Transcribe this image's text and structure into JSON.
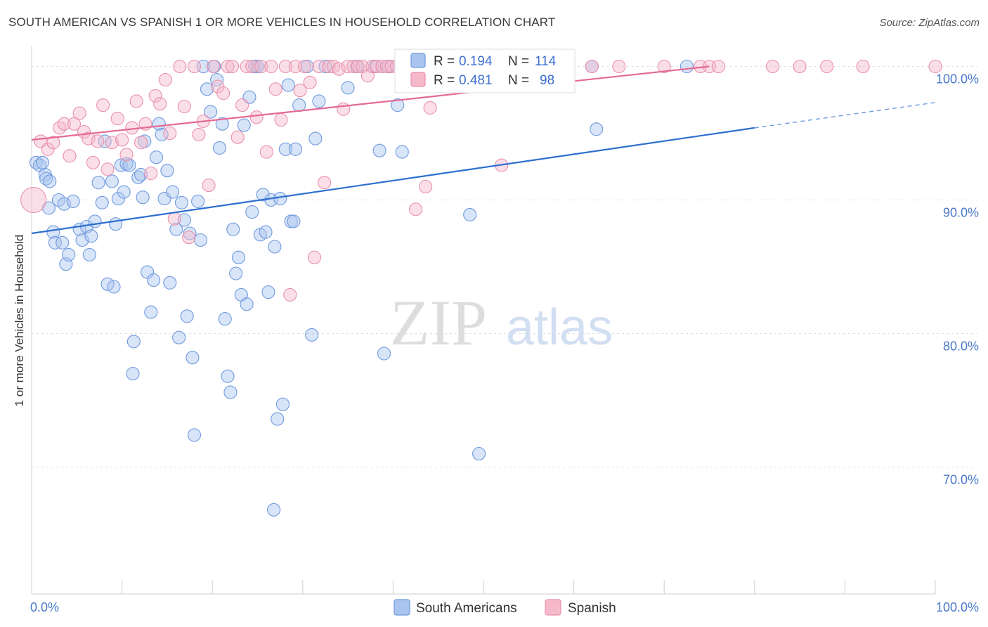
{
  "header": {
    "title": "SOUTH AMERICAN VS SPANISH 1 OR MORE VEHICLES IN HOUSEHOLD CORRELATION CHART",
    "source": "Source: ZipAtlas.com"
  },
  "watermark": {
    "zip": "ZIP",
    "atlas": "atlas"
  },
  "colors": {
    "blue_fill": "#a9c4ee",
    "blue_stroke": "#6f9ae0",
    "blue_line": "#2d6fd0",
    "pink_fill": "#f5b9cb",
    "pink_stroke": "#e990ab",
    "pink_line": "#e56a94",
    "tick_color": "#4a78c8",
    "grid": "#e0e0e0"
  },
  "legend": {
    "r_label": "R =",
    "n_label": "N =",
    "series": [
      {
        "name": "South Americans",
        "r": "0.194",
        "n": "114"
      },
      {
        "name": "Spanish",
        "r": "0.481",
        "n": "98"
      }
    ]
  },
  "chart_data": {
    "type": "scatter",
    "title": "SOUTH AMERICAN VS SPANISH 1 OR MORE VEHICLES IN HOUSEHOLD CORRELATION CHART",
    "xlabel": "",
    "ylabel": "1 or more Vehicles in Household",
    "xlim": [
      0,
      100
    ],
    "ylim": [
      60.5,
      101.5
    ],
    "x_tick_labels": [
      "0.0%",
      "100.0%"
    ],
    "y_ticks": [
      {
        "value": 100,
        "label": "100.0%"
      },
      {
        "value": 90,
        "label": "90.0%"
      },
      {
        "value": 80,
        "label": "80.0%"
      },
      {
        "value": 70,
        "label": "70.0%"
      }
    ],
    "series": [
      {
        "name": "South Americans",
        "color": "blue",
        "trend": {
          "x0": 0,
          "y0": 87.5,
          "x1": 80,
          "y1": 95.4,
          "dash_to_x": 100,
          "dash_to_y": 97.3
        },
        "points": [
          [
            0.5,
            92.8
          ],
          [
            0.9,
            92.6
          ],
          [
            1.2,
            92.8
          ],
          [
            1.5,
            91.9
          ],
          [
            1.6,
            91.6
          ],
          [
            2.0,
            91.4
          ],
          [
            1.9,
            89.4
          ],
          [
            2.4,
            87.6
          ],
          [
            2.6,
            86.8
          ],
          [
            3.0,
            90.0
          ],
          [
            3.4,
            86.8
          ],
          [
            3.6,
            89.7
          ],
          [
            3.8,
            85.2
          ],
          [
            4.1,
            85.9
          ],
          [
            4.6,
            89.9
          ],
          [
            5.3,
            87.8
          ],
          [
            5.6,
            87.0
          ],
          [
            6.1,
            88.0
          ],
          [
            6.4,
            85.9
          ],
          [
            6.6,
            87.3
          ],
          [
            7.0,
            88.4
          ],
          [
            7.4,
            91.3
          ],
          [
            7.8,
            89.8
          ],
          [
            8.1,
            94.4
          ],
          [
            8.4,
            83.7
          ],
          [
            8.9,
            91.4
          ],
          [
            9.1,
            83.5
          ],
          [
            9.3,
            88.2
          ],
          [
            9.6,
            90.1
          ],
          [
            9.9,
            92.6
          ],
          [
            10.2,
            90.6
          ],
          [
            10.5,
            92.7
          ],
          [
            10.8,
            92.6
          ],
          [
            11.3,
            79.4
          ],
          [
            11.2,
            77.0
          ],
          [
            11.8,
            91.7
          ],
          [
            12.1,
            91.9
          ],
          [
            12.3,
            90.2
          ],
          [
            12.5,
            94.4
          ],
          [
            12.8,
            84.6
          ],
          [
            13.2,
            81.6
          ],
          [
            13.5,
            84.0
          ],
          [
            13.8,
            93.2
          ],
          [
            14.1,
            95.7
          ],
          [
            14.4,
            94.9
          ],
          [
            14.7,
            90.1
          ],
          [
            15.0,
            92.2
          ],
          [
            15.3,
            83.8
          ],
          [
            15.6,
            90.6
          ],
          [
            16.0,
            87.8
          ],
          [
            16.3,
            79.7
          ],
          [
            16.6,
            89.8
          ],
          [
            16.9,
            88.5
          ],
          [
            17.2,
            81.3
          ],
          [
            17.5,
            87.5
          ],
          [
            17.8,
            78.2
          ],
          [
            18.0,
            72.4
          ],
          [
            18.4,
            89.9
          ],
          [
            18.7,
            87.0
          ],
          [
            19.0,
            100.0
          ],
          [
            19.4,
            98.3
          ],
          [
            19.8,
            96.6
          ],
          [
            20.2,
            100.0
          ],
          [
            20.5,
            99.0
          ],
          [
            20.8,
            93.9
          ],
          [
            21.1,
            95.7
          ],
          [
            21.4,
            81.1
          ],
          [
            21.7,
            76.8
          ],
          [
            22.0,
            75.6
          ],
          [
            22.3,
            87.8
          ],
          [
            22.6,
            84.5
          ],
          [
            22.9,
            85.7
          ],
          [
            23.2,
            82.9
          ],
          [
            23.5,
            95.6
          ],
          [
            23.8,
            82.2
          ],
          [
            24.1,
            97.7
          ],
          [
            24.4,
            89.1
          ],
          [
            24.7,
            100.0
          ],
          [
            25.0,
            100.0
          ],
          [
            25.3,
            87.4
          ],
          [
            25.6,
            90.4
          ],
          [
            25.9,
            87.6
          ],
          [
            26.2,
            83.1
          ],
          [
            26.5,
            90.0
          ],
          [
            26.9,
            86.5
          ],
          [
            27.2,
            73.6
          ],
          [
            27.5,
            90.1
          ],
          [
            27.8,
            74.7
          ],
          [
            28.1,
            93.8
          ],
          [
            28.4,
            98.6
          ],
          [
            28.7,
            88.4
          ],
          [
            29.0,
            88.4
          ],
          [
            29.2,
            93.8
          ],
          [
            29.6,
            97.1
          ],
          [
            30.5,
            100.0
          ],
          [
            31.0,
            79.9
          ],
          [
            31.4,
            94.6
          ],
          [
            31.8,
            97.4
          ],
          [
            32.5,
            100.0
          ],
          [
            35.0,
            98.4
          ],
          [
            36.0,
            100.0
          ],
          [
            38.0,
            100.0
          ],
          [
            38.5,
            93.7
          ],
          [
            39.0,
            78.5
          ],
          [
            39.5,
            100.0
          ],
          [
            40.5,
            97.1
          ],
          [
            41.0,
            93.6
          ],
          [
            43.0,
            98.6
          ],
          [
            49.0,
            100.0
          ],
          [
            49.5,
            71.0
          ],
          [
            48.5,
            88.9
          ],
          [
            62.0,
            100.0
          ],
          [
            62.5,
            95.3
          ],
          [
            72.5,
            100.0
          ],
          [
            26.8,
            66.8
          ]
        ]
      },
      {
        "name": "Spanish",
        "color": "pink",
        "trend": {
          "x0": 0,
          "y0": 94.5,
          "x1": 75,
          "y1": 100.0
        },
        "points": [
          [
            0.2,
            90.0
          ],
          [
            1.0,
            94.4
          ],
          [
            1.8,
            93.8
          ],
          [
            2.4,
            94.3
          ],
          [
            3.1,
            95.4
          ],
          [
            3.6,
            95.7
          ],
          [
            4.2,
            93.3
          ],
          [
            4.7,
            95.7
          ],
          [
            5.3,
            96.5
          ],
          [
            5.8,
            95.1
          ],
          [
            6.3,
            94.6
          ],
          [
            6.8,
            92.8
          ],
          [
            7.3,
            94.4
          ],
          [
            7.9,
            97.1
          ],
          [
            8.4,
            92.3
          ],
          [
            8.9,
            94.3
          ],
          [
            9.5,
            96.1
          ],
          [
            10.0,
            94.5
          ],
          [
            10.5,
            93.4
          ],
          [
            11.1,
            95.4
          ],
          [
            11.6,
            97.4
          ],
          [
            12.1,
            94.3
          ],
          [
            12.6,
            95.7
          ],
          [
            13.2,
            92.0
          ],
          [
            13.7,
            97.8
          ],
          [
            14.2,
            97.2
          ],
          [
            14.8,
            99.0
          ],
          [
            15.3,
            95.0
          ],
          [
            15.8,
            88.6
          ],
          [
            16.4,
            100.0
          ],
          [
            16.9,
            97.0
          ],
          [
            17.4,
            87.2
          ],
          [
            18.0,
            100.0
          ],
          [
            18.5,
            94.9
          ],
          [
            19.0,
            95.9
          ],
          [
            19.6,
            91.1
          ],
          [
            20.1,
            100.0
          ],
          [
            20.6,
            98.5
          ],
          [
            21.2,
            98.0
          ],
          [
            21.7,
            100.0
          ],
          [
            22.2,
            100.0
          ],
          [
            22.8,
            94.7
          ],
          [
            23.3,
            97.1
          ],
          [
            23.8,
            100.0
          ],
          [
            24.4,
            100.0
          ],
          [
            24.9,
            96.2
          ],
          [
            25.4,
            100.0
          ],
          [
            26.0,
            93.6
          ],
          [
            26.5,
            100.0
          ],
          [
            27.0,
            98.3
          ],
          [
            27.6,
            96.0
          ],
          [
            28.1,
            100.0
          ],
          [
            28.6,
            82.9
          ],
          [
            29.2,
            100.0
          ],
          [
            29.7,
            98.2
          ],
          [
            30.2,
            100.0
          ],
          [
            30.8,
            98.8
          ],
          [
            31.3,
            85.7
          ],
          [
            31.8,
            100.0
          ],
          [
            32.4,
            91.3
          ],
          [
            32.9,
            100.0
          ],
          [
            33.4,
            100.0
          ],
          [
            34.0,
            99.8
          ],
          [
            34.5,
            96.8
          ],
          [
            35.0,
            100.0
          ],
          [
            35.6,
            100.0
          ],
          [
            36.1,
            100.0
          ],
          [
            36.6,
            100.0
          ],
          [
            37.2,
            99.3
          ],
          [
            37.7,
            100.0
          ],
          [
            38.2,
            100.0
          ],
          [
            38.8,
            100.0
          ],
          [
            39.3,
            100.0
          ],
          [
            39.8,
            100.0
          ],
          [
            40.4,
            100.0
          ],
          [
            40.9,
            100.0
          ],
          [
            41.4,
            100.0
          ],
          [
            42.0,
            100.0
          ],
          [
            42.5,
            89.3
          ],
          [
            43.0,
            99.2
          ],
          [
            43.6,
            91.0
          ],
          [
            44.1,
            96.9
          ],
          [
            45.0,
            100.0
          ],
          [
            48.0,
            100.0
          ],
          [
            52.0,
            92.6
          ],
          [
            55.0,
            100.0
          ],
          [
            58.0,
            100.0
          ],
          [
            62.0,
            100.0
          ],
          [
            65.0,
            100.0
          ],
          [
            70.0,
            100.0
          ],
          [
            74.0,
            100.0
          ],
          [
            75.0,
            100.0
          ],
          [
            76.0,
            100.0
          ],
          [
            82.0,
            100.0
          ],
          [
            85.0,
            100.0
          ],
          [
            88.0,
            100.0
          ],
          [
            92.0,
            100.0
          ],
          [
            100.0,
            100.0
          ]
        ]
      }
    ]
  }
}
